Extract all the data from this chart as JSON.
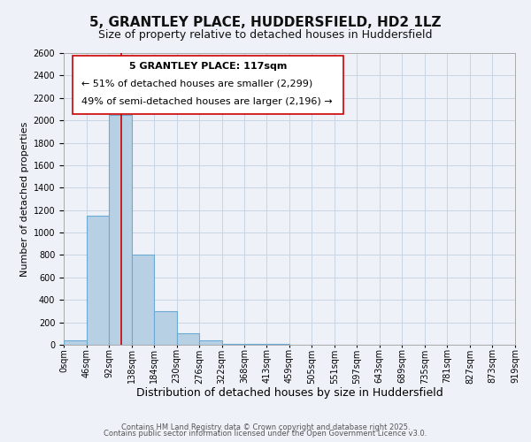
{
  "title1": "5, GRANTLEY PLACE, HUDDERSFIELD, HD2 1LZ",
  "title2": "Size of property relative to detached houses in Huddersfield",
  "xlabel": "Distribution of detached houses by size in Huddersfield",
  "ylabel": "Number of detached properties",
  "bar_values": [
    40,
    1150,
    2050,
    800,
    300,
    100,
    40,
    5,
    5,
    5,
    0,
    0,
    0,
    0,
    0,
    0,
    0,
    0,
    0,
    0
  ],
  "bin_edges": [
    0,
    46,
    92,
    138,
    184,
    230,
    276,
    322,
    368,
    413,
    459,
    505,
    551,
    597,
    643,
    689,
    735,
    781,
    827,
    873,
    919
  ],
  "tick_labels": [
    "0sqm",
    "46sqm",
    "92sqm",
    "138sqm",
    "184sqm",
    "230sqm",
    "276sqm",
    "322sqm",
    "368sqm",
    "413sqm",
    "459sqm",
    "505sqm",
    "551sqm",
    "597sqm",
    "643sqm",
    "689sqm",
    "735sqm",
    "781sqm",
    "827sqm",
    "873sqm",
    "919sqm"
  ],
  "bar_color": "#b8d0e4",
  "bar_edge_color": "#6aaad4",
  "bar_edge_width": 0.8,
  "vline_x": 117,
  "vline_color": "#cc0000",
  "ylim": [
    0,
    2600
  ],
  "yticks": [
    0,
    200,
    400,
    600,
    800,
    1000,
    1200,
    1400,
    1600,
    1800,
    2000,
    2200,
    2400,
    2600
  ],
  "annotation_box_title": "5 GRANTLEY PLACE: 117sqm",
  "annotation_line1": "← 51% of detached houses are smaller (2,299)",
  "annotation_line2": "49% of semi-detached houses are larger (2,196) →",
  "bg_color": "#eef2f8",
  "grid_color": "#c8d4e4",
  "footer1": "Contains HM Land Registry data © Crown copyright and database right 2025.",
  "footer2": "Contains public sector information licensed under the Open Government Licence v3.0.",
  "title1_fontsize": 11,
  "title2_fontsize": 9,
  "xlabel_fontsize": 9,
  "ylabel_fontsize": 8,
  "tick_fontsize": 7,
  "annotation_title_fontsize": 8,
  "annotation_fontsize": 8,
  "footer_fontsize": 6
}
